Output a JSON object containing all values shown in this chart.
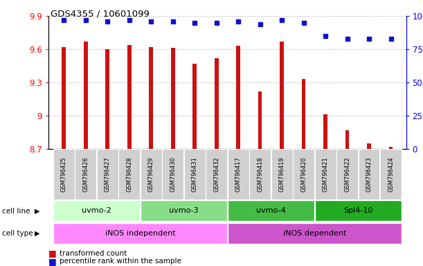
{
  "title": "GDS4355 / 10601099",
  "samples": [
    "GSM796425",
    "GSM796426",
    "GSM796427",
    "GSM796428",
    "GSM796429",
    "GSM796430",
    "GSM796431",
    "GSM796432",
    "GSM796417",
    "GSM796418",
    "GSM796419",
    "GSM796420",
    "GSM796421",
    "GSM796422",
    "GSM796423",
    "GSM796424"
  ],
  "red_values": [
    9.62,
    9.67,
    9.6,
    9.64,
    9.62,
    9.61,
    9.47,
    9.52,
    9.63,
    9.22,
    9.67,
    9.33,
    9.01,
    8.87,
    8.75,
    8.72
  ],
  "blue_values": [
    97,
    97,
    96,
    97,
    96,
    96,
    95,
    95,
    96,
    94,
    97,
    95,
    85,
    83,
    83,
    83
  ],
  "ylim_left": [
    8.7,
    9.9
  ],
  "ylim_right": [
    0,
    100
  ],
  "yticks_left": [
    8.7,
    9.0,
    9.3,
    9.6,
    9.9
  ],
  "yticks_right": [
    0,
    25,
    50,
    75,
    100
  ],
  "ytick_labels_left": [
    "8.7",
    "9",
    "9.3",
    "9.6",
    "9.9"
  ],
  "ytick_labels_right": [
    "0",
    "25",
    "50",
    "75",
    "100%"
  ],
  "cell_lines": [
    {
      "label": "uvmo-2",
      "start": 0,
      "end": 4,
      "color": "#ccffcc"
    },
    {
      "label": "uvmo-3",
      "start": 4,
      "end": 8,
      "color": "#88dd88"
    },
    {
      "label": "uvmo-4",
      "start": 8,
      "end": 12,
      "color": "#44bb44"
    },
    {
      "label": "Spl4-10",
      "start": 12,
      "end": 16,
      "color": "#22aa22"
    }
  ],
  "cell_types": [
    {
      "label": "iNOS independent",
      "start": 0,
      "end": 8,
      "color": "#ff88ff"
    },
    {
      "label": "iNOS dependent",
      "start": 8,
      "end": 16,
      "color": "#cc55cc"
    }
  ],
  "bar_color": "#cc1111",
  "dot_color": "#1111cc",
  "grid_color": "#aaaaaa",
  "bar_width": 0.18,
  "legend_red": "transformed count",
  "legend_blue": "percentile rank within the sample"
}
